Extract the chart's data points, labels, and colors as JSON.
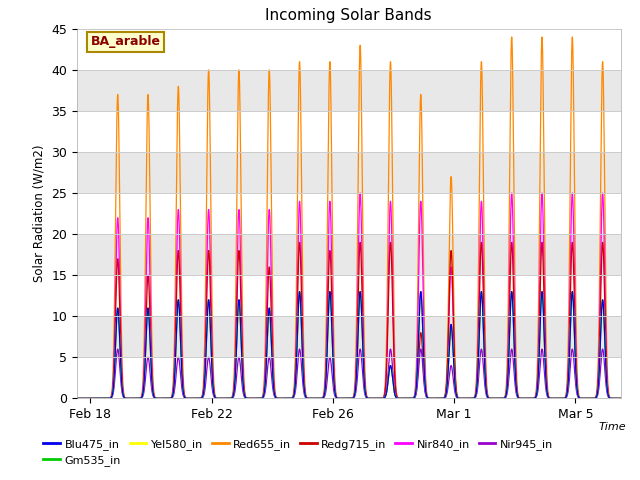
{
  "title": "Incoming Solar Bands",
  "ylabel": "Solar Radiation (W/m2)",
  "xlabel": "Time",
  "annotation": "BA_arable",
  "ylim": [
    0,
    45
  ],
  "plot_bg": "#f0f0f0",
  "fig_bg": "#ffffff",
  "legend_entries": [
    {
      "label": "Blu475_in",
      "color": "#0000ee"
    },
    {
      "label": "Gm535_in",
      "color": "#00cc00"
    },
    {
      "label": "Yel580_in",
      "color": "#ffff00"
    },
    {
      "label": "Red655_in",
      "color": "#ff8800"
    },
    {
      "label": "Redg715_in",
      "color": "#cc0000"
    },
    {
      "label": "Nir840_in",
      "color": "#ff00ff"
    },
    {
      "label": "Nir945_in",
      "color": "#9900cc"
    }
  ],
  "x_tick_positions": [
    18.0,
    22.0,
    26.0,
    30.0,
    34.0
  ],
  "x_tick_labels": [
    "Feb 18",
    "Feb 22",
    "Feb 26",
    "Mar 1",
    "Mar 5"
  ],
  "peak_days": [
    18.4,
    18.9,
    19.4,
    19.9,
    20.4,
    20.9,
    21.4,
    21.9,
    22.4,
    22.9,
    23.4,
    23.9,
    24.4,
    24.9,
    25.4,
    25.9,
    26.4,
    26.9,
    27.4,
    27.9,
    28.4,
    28.9,
    29.4,
    29.9,
    30.4,
    30.9,
    31.4,
    31.9,
    32.4,
    32.9,
    33.4,
    33.9,
    34.4,
    34.9
  ],
  "band_peaks": {
    "Blu475_in": [
      0,
      11,
      0,
      11,
      0,
      12,
      0,
      12,
      0,
      12,
      0,
      11,
      0,
      13,
      0,
      13,
      0,
      13,
      0,
      4,
      0,
      13,
      0,
      9,
      0,
      13,
      0,
      13,
      0,
      13,
      0,
      13,
      0,
      12
    ],
    "Gm535_in": [
      0,
      11,
      0,
      11,
      0,
      12,
      0,
      12,
      0,
      12,
      0,
      11,
      0,
      13,
      0,
      13,
      0,
      13,
      0,
      4,
      0,
      13,
      0,
      9,
      0,
      13,
      0,
      13,
      0,
      13,
      0,
      13,
      0,
      12
    ],
    "Yel580_in": [
      0,
      11,
      0,
      11,
      0,
      12,
      0,
      12,
      0,
      12,
      0,
      11,
      0,
      13,
      0,
      13,
      0,
      13,
      0,
      4,
      0,
      13,
      0,
      9,
      0,
      13,
      0,
      13,
      0,
      13,
      0,
      13,
      0,
      12
    ],
    "Red655_in": [
      0,
      37,
      0,
      37,
      0,
      38,
      0,
      40,
      0,
      40,
      0,
      40,
      0,
      41,
      0,
      41,
      0,
      43,
      0,
      41,
      0,
      37,
      0,
      27,
      0,
      41,
      0,
      44,
      0,
      44,
      0,
      44,
      0,
      41
    ],
    "Redg715_in": [
      0,
      17,
      0,
      15,
      0,
      18,
      0,
      18,
      0,
      18,
      0,
      16,
      0,
      19,
      0,
      18,
      0,
      19,
      0,
      19,
      0,
      8,
      0,
      18,
      0,
      19,
      0,
      19,
      0,
      19,
      0,
      19,
      0,
      19
    ],
    "Nir840_in": [
      0,
      22,
      0,
      22,
      0,
      23,
      0,
      23,
      0,
      23,
      0,
      23,
      0,
      24,
      0,
      24,
      0,
      25,
      0,
      24,
      0,
      24,
      0,
      16,
      0,
      24,
      0,
      25,
      0,
      25,
      0,
      25,
      0,
      25
    ],
    "Nir945_in": [
      0,
      6,
      0,
      5,
      0,
      5,
      0,
      5,
      0,
      5,
      0,
      5,
      0,
      6,
      0,
      5,
      0,
      6,
      0,
      6,
      0,
      6,
      0,
      4,
      0,
      6,
      0,
      6,
      0,
      6,
      0,
      6,
      0,
      6
    ]
  },
  "colors": {
    "Blu475_in": "#0000ee",
    "Gm535_in": "#00cc00",
    "Yel580_in": "#ffff00",
    "Red655_in": "#ff8800",
    "Redg715_in": "#cc0000",
    "Nir840_in": "#ff00ff",
    "Nir945_in": "#9900cc"
  },
  "xlim": [
    17.55,
    35.5
  ]
}
